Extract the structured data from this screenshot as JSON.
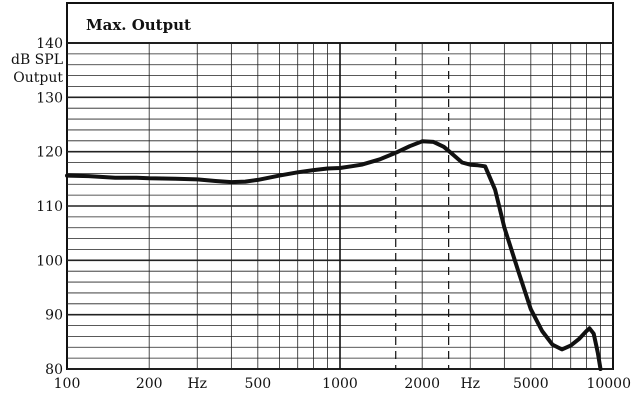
{
  "chart_data": {
    "type": "line",
    "title": "Max. Output",
    "ylabel": [
      "dB SPL",
      "Output"
    ],
    "xlabel": "Hz",
    "x_scale": "log",
    "xlim": [
      100,
      10000
    ],
    "ylim": [
      80,
      140
    ],
    "xticks": [
      100,
      200,
      500,
      1000,
      2000,
      5000,
      10000
    ],
    "xtick_labels": [
      "100",
      "200",
      "500",
      "1000",
      "2000",
      "5000",
      "10000"
    ],
    "hz_label_positions": [
      300,
      3000
    ],
    "yticks": [
      80,
      90,
      100,
      110,
      120,
      130,
      140
    ],
    "ytick_labels": [
      "80",
      "90",
      "100",
      "110",
      "120",
      "130",
      "140"
    ],
    "dashed_verticals": [
      1600,
      2500
    ],
    "grid": true,
    "series": [
      {
        "x": [
          100,
          120,
          150,
          180,
          200,
          250,
          300,
          350,
          400,
          450,
          500,
          600,
          700,
          800,
          900,
          1000,
          1100,
          1200,
          1400,
          1600,
          1800,
          2000,
          2200,
          2400,
          2600,
          2800,
          3000,
          3200,
          3400,
          3700,
          4000,
          4500,
          5000,
          5500,
          6000,
          6500,
          7000,
          7500,
          8000,
          8200,
          8500,
          8800,
          9000
        ],
        "y": [
          115.6,
          115.5,
          115.2,
          115.2,
          115.1,
          115.0,
          114.9,
          114.6,
          114.4,
          114.5,
          114.8,
          115.6,
          116.2,
          116.6,
          116.9,
          117.0,
          117.3,
          117.6,
          118.6,
          119.8,
          121.0,
          121.9,
          121.8,
          120.9,
          119.4,
          118.0,
          117.6,
          117.5,
          117.3,
          113.0,
          106.0,
          98.0,
          91.0,
          87.0,
          84.5,
          83.6,
          84.3,
          85.5,
          87.0,
          87.5,
          86.5,
          83.0,
          80.0
        ]
      }
    ]
  }
}
